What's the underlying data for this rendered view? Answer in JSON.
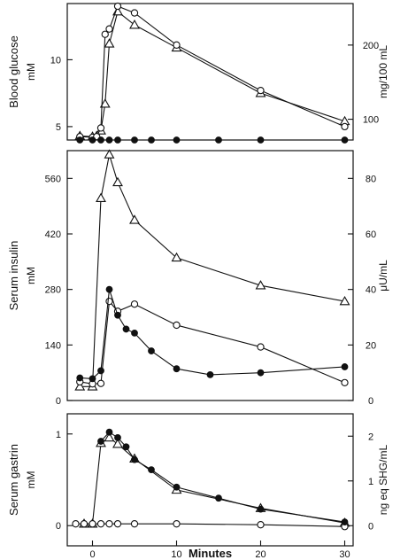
{
  "chart_data": [
    {
      "type": "line",
      "ylabel": "Blood glucose",
      "yunit": "mM",
      "ylabel_right": "mg/100 mL",
      "xlim": [
        -3,
        31
      ],
      "ylim": [
        4.0,
        14.2
      ],
      "ylim_right": [
        72,
        256
      ],
      "yticks": [
        5,
        10
      ],
      "yticks_right": [
        100,
        200
      ],
      "series": [
        {
          "marker": "triangle-open",
          "x": [
            -1.5,
            0,
            0.5,
            1,
            1.5,
            2,
            3,
            5,
            10,
            20,
            30
          ],
          "y": [
            4.3,
            4.25,
            4.3,
            4.7,
            6.7,
            11.2,
            13.6,
            12.6,
            10.9,
            7.5,
            5.4
          ]
        },
        {
          "marker": "circle-open",
          "x": [
            -1.5,
            0,
            0.5,
            1,
            1.5,
            2,
            3,
            5,
            10,
            20,
            30
          ],
          "y": [
            4.25,
            4.2,
            4.25,
            4.9,
            11.9,
            12.3,
            14.0,
            13.5,
            11.1,
            7.7,
            5.0
          ]
        },
        {
          "marker": "circle-filled",
          "x": [
            -1.5,
            0,
            1,
            2,
            3,
            5,
            7,
            10,
            15,
            20,
            30
          ],
          "y": [
            4.0,
            4.0,
            4.0,
            4.0,
            4.0,
            4.0,
            4.0,
            4.0,
            4.0,
            4.0,
            4.0
          ]
        }
      ]
    },
    {
      "type": "line",
      "ylabel": "Serum insulin",
      "yunit": "mM",
      "ylabel_right": "μU/mL",
      "xlim": [
        -3,
        31
      ],
      "ylim": [
        0,
        630
      ],
      "ylim_right": [
        0,
        90
      ],
      "yticks": [
        0,
        140,
        280,
        420,
        560
      ],
      "yticks_right": [
        0,
        20,
        40,
        60,
        80
      ],
      "series": [
        {
          "marker": "triangle-open",
          "x": [
            -1.5,
            0,
            1,
            2,
            3,
            5,
            10,
            20,
            30
          ],
          "y": [
            35,
            35,
            510,
            620,
            550,
            455,
            360,
            290,
            250
          ]
        },
        {
          "marker": "circle-open",
          "x": [
            -1.5,
            0,
            1,
            2,
            3,
            5,
            10,
            20,
            30
          ],
          "y": [
            47,
            42,
            43,
            250,
            225,
            243,
            190,
            135,
            45
          ]
        },
        {
          "marker": "circle-filled",
          "x": [
            -1.5,
            0,
            1,
            2,
            3,
            4,
            5,
            7,
            10,
            14,
            20,
            30
          ],
          "y": [
            57,
            55,
            75,
            280,
            215,
            180,
            170,
            125,
            80,
            65,
            70,
            85
          ]
        }
      ]
    },
    {
      "type": "line",
      "ylabel": "Serum gastrin",
      "yunit": "mM",
      "ylabel_right": "ng eq SHG/mL",
      "xlabel": "Minutes",
      "xlim": [
        -3,
        31
      ],
      "ylim": [
        -0.22,
        1.22
      ],
      "ylim_right": [
        -0.45,
        2.5
      ],
      "yticks": [
        0,
        1
      ],
      "yticks_right": [
        0,
        1,
        2
      ],
      "xticks": [
        0,
        10,
        20,
        30
      ],
      "series": [
        {
          "marker": "triangle-open",
          "x": [
            -1,
            0,
            1,
            2,
            3,
            5,
            10,
            20,
            30
          ],
          "y": [
            0.02,
            0.02,
            0.9,
            0.96,
            0.89,
            0.73,
            0.39,
            0.19,
            0.03
          ]
        },
        {
          "marker": "circle-open",
          "x": [
            -2,
            -1,
            0,
            1,
            2,
            3,
            5,
            10,
            20,
            30
          ],
          "y": [
            0.02,
            0.02,
            0.02,
            0.02,
            0.02,
            0.02,
            0.02,
            0.02,
            0.01,
            -0.01
          ]
        },
        {
          "marker": "circle-filled",
          "x": [
            1,
            2,
            3,
            4,
            5,
            7,
            10,
            15,
            20,
            30
          ],
          "y": [
            0.92,
            1.02,
            0.96,
            0.86,
            0.72,
            0.61,
            0.42,
            0.3,
            0.18,
            0.04
          ]
        }
      ]
    }
  ]
}
